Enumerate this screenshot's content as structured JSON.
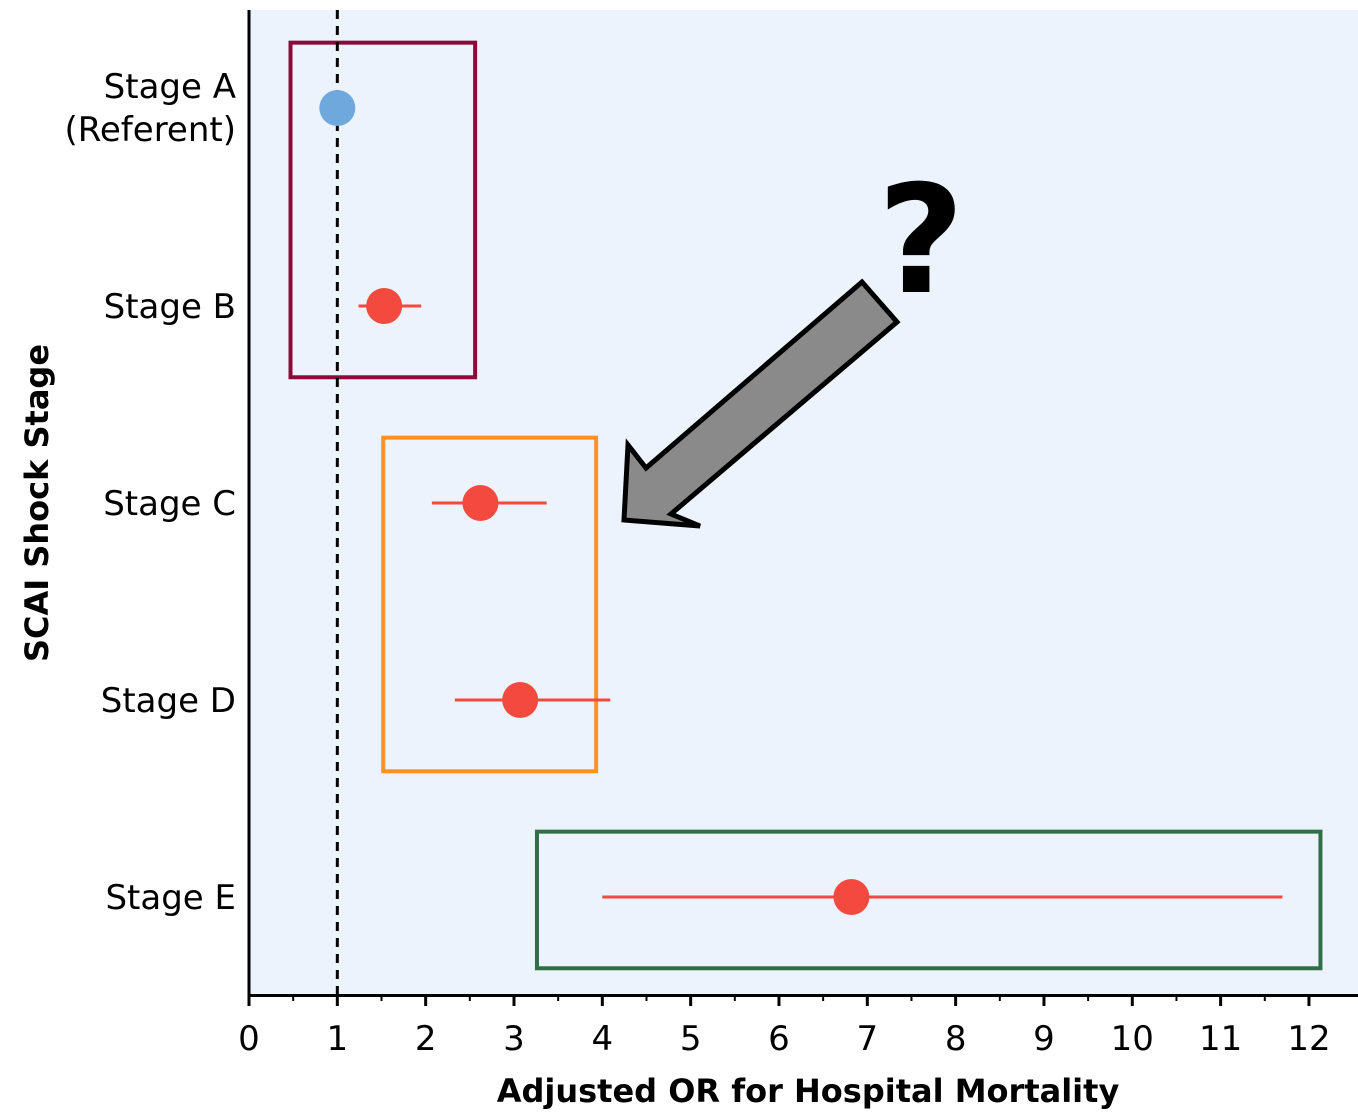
{
  "chart_data": {
    "type": "scatter",
    "subtype": "forest-plot",
    "xlabel": "Adjusted OR for Hospital Mortality",
    "ylabel": "SCAI Shock Stage",
    "xlim": [
      0,
      12.5
    ],
    "xticks": [
      0,
      1,
      2,
      3,
      4,
      5,
      6,
      7,
      8,
      9,
      10,
      11,
      12
    ],
    "reference_line": 1,
    "grid": false,
    "categories": [
      {
        "line1": "Stage A",
        "line2": "(Referent)"
      },
      {
        "line1": "Stage B",
        "line2": ""
      },
      {
        "line1": "Stage C",
        "line2": ""
      },
      {
        "line1": "Stage D",
        "line2": ""
      },
      {
        "line1": "Stage E",
        "line2": ""
      }
    ],
    "points": [
      {
        "or": 1.0,
        "ci": [
          1.0,
          1.0
        ],
        "color": "#6fa8dc"
      },
      {
        "or": 1.53,
        "ci": [
          1.24,
          1.95
        ],
        "color": "#f24a3f"
      },
      {
        "or": 2.62,
        "ci": [
          2.07,
          3.37
        ],
        "color": "#f24a3f"
      },
      {
        "or": 3.07,
        "ci": [
          2.33,
          4.09
        ],
        "color": "#f24a3f"
      },
      {
        "or": 6.82,
        "ci": [
          4.0,
          11.7
        ],
        "color": "#f24a3f"
      }
    ],
    "groups": [
      {
        "color": "#8b0a3a",
        "stages": [
          "Stage A",
          "Stage B"
        ],
        "x_range": [
          0.47,
          2.56
        ]
      },
      {
        "color": "#f7922b",
        "stages": [
          "Stage C",
          "Stage D"
        ],
        "x_range": [
          1.52,
          3.93
        ]
      },
      {
        "color": "#2f6e46",
        "stages": [
          "Stage E"
        ],
        "x_range": [
          3.26,
          12.13
        ]
      }
    ],
    "annotation": {
      "symbol": "?",
      "arrow_color": "#8a8a8a"
    },
    "colors": {
      "background": "#ecf3fc",
      "point_referent": "#6fa8dc",
      "point": "#f24a3f"
    }
  }
}
